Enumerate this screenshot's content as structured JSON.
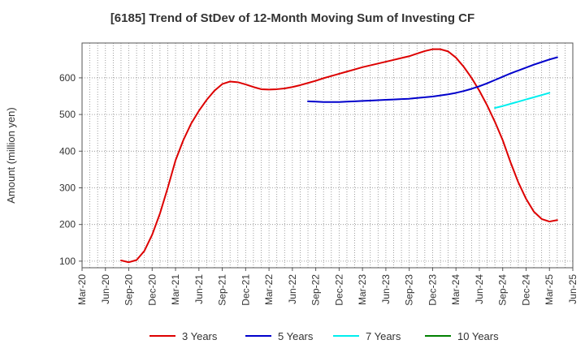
{
  "chart_data": {
    "type": "line",
    "title": "[6185]  Trend of StDev of 12-Month Moving Sum of Investing CF",
    "xlabel": "",
    "ylabel": "Amount (million yen)",
    "ylim": [
      82,
      695
    ],
    "yticks": [
      100,
      200,
      300,
      400,
      500,
      600
    ],
    "x_range": [
      "2020-03",
      "2025-06"
    ],
    "x_tick_labels": [
      "Mar-20",
      "Jun-20",
      "Sep-20",
      "Dec-20",
      "Mar-21",
      "Jun-21",
      "Sep-21",
      "Dec-21",
      "Mar-22",
      "Jun-22",
      "Sep-22",
      "Dec-22",
      "Mar-23",
      "Jun-23",
      "Sep-23",
      "Dec-23",
      "Mar-24",
      "Jun-24",
      "Sep-24",
      "Dec-24",
      "Mar-25",
      "Jun-25"
    ],
    "grid": true,
    "legend_position": "bottom",
    "series": [
      {
        "name": "3 Years",
        "color": "#dd0000",
        "points": [
          [
            "2020-08",
            102
          ],
          [
            "2020-09",
            97
          ],
          [
            "2020-10",
            103
          ],
          [
            "2020-11",
            128
          ],
          [
            "2020-12",
            172
          ],
          [
            "2021-01",
            230
          ],
          [
            "2021-02",
            300
          ],
          [
            "2021-03",
            375
          ],
          [
            "2021-04",
            430
          ],
          [
            "2021-05",
            475
          ],
          [
            "2021-06",
            510
          ],
          [
            "2021-07",
            540
          ],
          [
            "2021-08",
            565
          ],
          [
            "2021-09",
            583
          ],
          [
            "2021-10",
            590
          ],
          [
            "2021-11",
            588
          ],
          [
            "2021-12",
            582
          ],
          [
            "2022-01",
            575
          ],
          [
            "2022-02",
            569
          ],
          [
            "2022-03",
            568
          ],
          [
            "2022-04",
            569
          ],
          [
            "2022-05",
            571
          ],
          [
            "2022-06",
            575
          ],
          [
            "2022-07",
            580
          ],
          [
            "2022-08",
            586
          ],
          [
            "2022-09",
            592
          ],
          [
            "2022-10",
            599
          ],
          [
            "2022-11",
            605
          ],
          [
            "2022-12",
            611
          ],
          [
            "2023-01",
            617
          ],
          [
            "2023-02",
            623
          ],
          [
            "2023-03",
            629
          ],
          [
            "2023-04",
            634
          ],
          [
            "2023-05",
            639
          ],
          [
            "2023-06",
            644
          ],
          [
            "2023-07",
            649
          ],
          [
            "2023-08",
            654
          ],
          [
            "2023-09",
            659
          ],
          [
            "2023-10",
            666
          ],
          [
            "2023-11",
            673
          ],
          [
            "2023-12",
            678
          ],
          [
            "2024-01",
            678
          ],
          [
            "2024-02",
            672
          ],
          [
            "2024-03",
            655
          ],
          [
            "2024-04",
            630
          ],
          [
            "2024-05",
            600
          ],
          [
            "2024-06",
            565
          ],
          [
            "2024-07",
            525
          ],
          [
            "2024-08",
            480
          ],
          [
            "2024-09",
            430
          ],
          [
            "2024-10",
            370
          ],
          [
            "2024-11",
            315
          ],
          [
            "2024-12",
            270
          ],
          [
            "2025-01",
            235
          ],
          [
            "2025-02",
            215
          ],
          [
            "2025-03",
            208
          ],
          [
            "2025-04",
            212
          ]
        ]
      },
      {
        "name": "5 Years",
        "color": "#0000cc",
        "points": [
          [
            "2022-08",
            536
          ],
          [
            "2022-09",
            535
          ],
          [
            "2022-10",
            534
          ],
          [
            "2022-11",
            534
          ],
          [
            "2022-12",
            534
          ],
          [
            "2023-01",
            535
          ],
          [
            "2023-02",
            536
          ],
          [
            "2023-03",
            537
          ],
          [
            "2023-04",
            538
          ],
          [
            "2023-05",
            539
          ],
          [
            "2023-06",
            540
          ],
          [
            "2023-07",
            541
          ],
          [
            "2023-08",
            542
          ],
          [
            "2023-09",
            543
          ],
          [
            "2023-10",
            545
          ],
          [
            "2023-11",
            547
          ],
          [
            "2023-12",
            549
          ],
          [
            "2024-01",
            552
          ],
          [
            "2024-02",
            555
          ],
          [
            "2024-03",
            559
          ],
          [
            "2024-04",
            564
          ],
          [
            "2024-05",
            570
          ],
          [
            "2024-06",
            577
          ],
          [
            "2024-07",
            585
          ],
          [
            "2024-08",
            594
          ],
          [
            "2024-09",
            603
          ],
          [
            "2024-10",
            612
          ],
          [
            "2024-11",
            620
          ],
          [
            "2024-12",
            628
          ],
          [
            "2025-01",
            636
          ],
          [
            "2025-02",
            643
          ],
          [
            "2025-03",
            650
          ],
          [
            "2025-04",
            656
          ]
        ]
      },
      {
        "name": "7 Years",
        "color": "#00eeee",
        "points": [
          [
            "2024-08",
            518
          ],
          [
            "2024-09",
            523
          ],
          [
            "2024-10",
            529
          ],
          [
            "2024-11",
            535
          ],
          [
            "2024-12",
            541
          ],
          [
            "2025-01",
            547
          ],
          [
            "2025-02",
            553
          ],
          [
            "2025-03",
            559
          ]
        ]
      },
      {
        "name": "10 Years",
        "color": "#008000",
        "points": []
      }
    ]
  }
}
